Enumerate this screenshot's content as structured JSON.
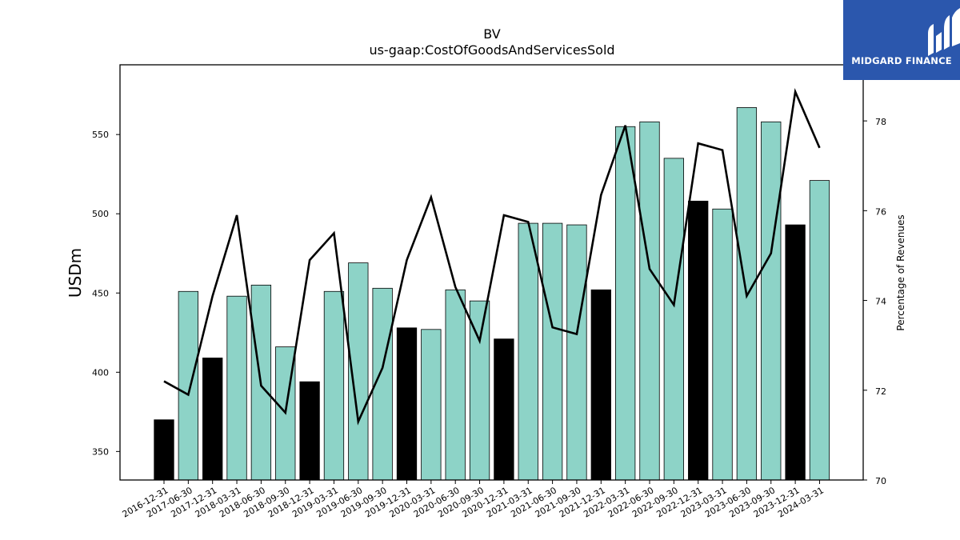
{
  "brand": {
    "name": "MIDGARD FINANCE",
    "bg_color": "#2b57ad"
  },
  "chart_data": {
    "type": "bar",
    "title": "BV",
    "subtitle": "us-gaap:CostOfGoodsAndServicesSold",
    "ylabel": "USDm",
    "y2label": "Percentage of Revenues",
    "ylim": [
      332,
      594
    ],
    "y2lim": [
      70,
      79.25
    ],
    "yticks": [
      350,
      400,
      450,
      500,
      550
    ],
    "y2ticks": [
      70,
      72,
      74,
      76,
      78
    ],
    "colors": {
      "quarterly_bar": "#8dd3c7",
      "annual_bar": "#000000",
      "line": "#000000"
    },
    "categories": [
      "2016-12-31",
      "2017-06-30",
      "2017-12-31",
      "2018-03-31",
      "2018-06-30",
      "2018-09-30",
      "2018-12-31",
      "2019-03-31",
      "2019-06-30",
      "2019-09-30",
      "2019-12-31",
      "2020-03-31",
      "2020-06-30",
      "2020-09-30",
      "2020-12-31",
      "2021-03-31",
      "2021-06-30",
      "2021-09-30",
      "2021-12-31",
      "2022-03-31",
      "2022-06-30",
      "2022-09-30",
      "2022-12-31",
      "2023-03-31",
      "2023-06-30",
      "2023-09-30",
      "2023-12-31",
      "2024-03-31"
    ],
    "series": [
      {
        "values": [
          370,
          451,
          409,
          448,
          455,
          416,
          394,
          451,
          469,
          453,
          428,
          427,
          452,
          445,
          421,
          494,
          494,
          493,
          452,
          555,
          558,
          535,
          508,
          503,
          567,
          558,
          493,
          521
        ],
        "annual": [
          true,
          false,
          true,
          false,
          false,
          false,
          true,
          false,
          false,
          false,
          true,
          false,
          false,
          false,
          true,
          false,
          false,
          false,
          true,
          false,
          false,
          false,
          true,
          false,
          false,
          false,
          true,
          false
        ]
      },
      {
        "axis": "right",
        "values": [
          72.2,
          71.9,
          74.1,
          75.9,
          72.1,
          71.5,
          74.9,
          75.5,
          71.3,
          72.5,
          74.9,
          76.3,
          74.3,
          73.1,
          75.9,
          75.75,
          73.4,
          73.25,
          76.35,
          77.9,
          74.7,
          73.9,
          77.5,
          77.35,
          74.1,
          75.05,
          78.65,
          77.4
        ]
      }
    ]
  }
}
